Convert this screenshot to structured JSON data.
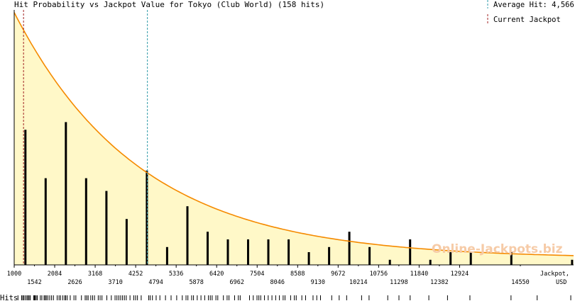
{
  "chart_data": {
    "type": "bar",
    "title": "Hit Probability vs Jackpot Value for Tokyo (Club World) (158 hits)",
    "xlabel": "Jackpot,",
    "xlabel_unit": "USD",
    "hits_label": "Hits",
    "watermark": "Online-Jackpots.biz",
    "legend": {
      "average_label": "Average Hit: 4,566",
      "average_value": 4566,
      "current_label": "Current Jackpot",
      "current_value": 1250,
      "placement": "top-right"
    },
    "xlim": [
      1000,
      15975
    ],
    "ylim": [
      0,
      1
    ],
    "x_ticks_top": [
      1000,
      2084,
      3168,
      4252,
      5336,
      6420,
      7504,
      8588,
      9672,
      10756,
      11840,
      12924
    ],
    "x_ticks_top_labels": [
      "1000",
      "2084",
      "3168",
      "4252",
      "5336",
      "6420",
      "7504",
      "8588",
      "9672",
      "10756",
      "11840",
      "12924"
    ],
    "x_ticks_bottom": [
      1542,
      2626,
      3710,
      4794,
      5878,
      6962,
      8046,
      9130,
      10214,
      11298,
      12382,
      14550
    ],
    "x_ticks_bottom_labels": [
      "1542",
      "2626",
      "3710",
      "4794",
      "5878",
      "6962",
      "8046",
      "9130",
      "10214",
      "11298",
      "12382",
      "14550"
    ],
    "bars": {
      "x": [
        1300,
        1842,
        2384,
        2926,
        3468,
        4010,
        4552,
        5094,
        5636,
        6178,
        6720,
        7262,
        7804,
        8346,
        8888,
        9430,
        9972,
        10514,
        11056,
        11598,
        12140,
        12682,
        13224,
        14308,
        15935
      ],
      "values": [
        0.53,
        0.34,
        0.56,
        0.34,
        0.29,
        0.18,
        0.37,
        0.07,
        0.23,
        0.13,
        0.1,
        0.1,
        0.1,
        0.1,
        0.05,
        0.07,
        0.13,
        0.07,
        0.02,
        0.1,
        0.02,
        0.05,
        0.05,
        0.05,
        0.02
      ]
    },
    "curve": {
      "type": "exponential",
      "start": 0.99,
      "end": 0.025,
      "decay_rate": 0.000296
    },
    "hit_rug": [
      1100,
      1200,
      1230,
      1260,
      1300,
      1340,
      1370,
      1400,
      1430,
      1520,
      1540,
      1560,
      1590,
      1620,
      1700,
      1740,
      1800,
      1830,
      1860,
      1900,
      1950,
      2000,
      2050,
      2150,
      2200,
      2240,
      2300,
      2350,
      2380,
      2420,
      2500,
      2600,
      2650,
      2800,
      2900,
      2940,
      2980,
      3050,
      3100,
      3150,
      3250,
      3300,
      3350,
      3480,
      3600,
      3700,
      3750,
      3800,
      3850,
      3900,
      3950,
      4000,
      4100,
      4200,
      4250,
      4300,
      4400,
      4600,
      4640,
      4700,
      4800,
      4900,
      5050,
      5200,
      5350,
      5500,
      5600,
      5650,
      5750,
      5800,
      5900,
      6000,
      6100,
      6200,
      6250,
      6300,
      6400,
      6450,
      6600,
      6700,
      6750,
      6900,
      7000,
      7050,
      7300,
      7400,
      7500,
      7550,
      7600,
      7700,
      7800,
      7900,
      8000,
      8100,
      8200,
      8250,
      8400,
      8500,
      8550,
      8700,
      8800,
      9000,
      9100,
      9200,
      9500,
      9700,
      9900,
      10300,
      10500,
      11000,
      11300,
      11600,
      12100,
      12600,
      13200,
      14300,
      15000,
      15900
    ]
  }
}
